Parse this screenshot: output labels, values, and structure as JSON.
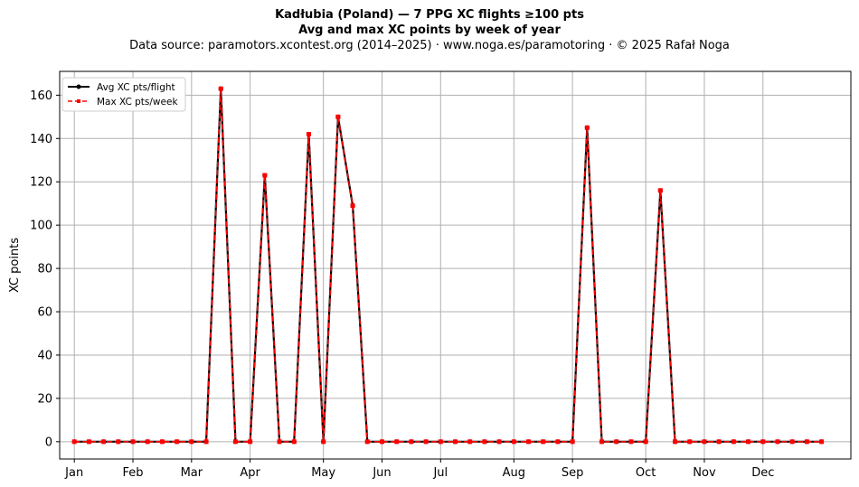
{
  "chart_data": {
    "type": "line",
    "title": "Kadłubia (Poland)  —  7 PPG XC flights ≥100 pts",
    "subtitle": "Avg and max XC points by week of year",
    "source_note": "Data source: paramotors.xcontest.org (2014–2025)  ·  www.noga.es/paramotoring  ·  © 2025 Rafał Noga",
    "ylabel": "XC points",
    "xlabel": "",
    "xlim": [
      0,
      54
    ],
    "ylim": [
      -8,
      171
    ],
    "x_ticks": [
      {
        "label": "Jan",
        "x": 1
      },
      {
        "label": "Feb",
        "x": 5
      },
      {
        "label": "Mar",
        "x": 9
      },
      {
        "label": "Apr",
        "x": 13
      },
      {
        "label": "May",
        "x": 18
      },
      {
        "label": "Jun",
        "x": 22
      },
      {
        "label": "Jul",
        "x": 26
      },
      {
        "label": "Aug",
        "x": 31
      },
      {
        "label": "Sep",
        "x": 35
      },
      {
        "label": "Oct",
        "x": 40
      },
      {
        "label": "Nov",
        "x": 44
      },
      {
        "label": "Dec",
        "x": 48
      }
    ],
    "y_ticks": [
      0,
      20,
      40,
      60,
      80,
      100,
      120,
      140,
      160
    ],
    "grid": true,
    "legend_position": "top-left",
    "x": [
      1,
      2,
      3,
      4,
      5,
      6,
      7,
      8,
      9,
      10,
      11,
      12,
      13,
      14,
      15,
      16,
      17,
      18,
      19,
      20,
      21,
      22,
      23,
      24,
      25,
      26,
      27,
      28,
      29,
      30,
      31,
      32,
      33,
      34,
      35,
      36,
      37,
      38,
      39,
      40,
      41,
      42,
      43,
      44,
      45,
      46,
      47,
      48,
      49,
      50,
      51,
      52
    ],
    "series": [
      {
        "name": "Avg XC pts/flight",
        "color": "#000000",
        "style": "solid-dot",
        "values": [
          0,
          0,
          0,
          0,
          0,
          0,
          0,
          0,
          0,
          0,
          163,
          0,
          0,
          123,
          0,
          0,
          142,
          0,
          150,
          109,
          0,
          0,
          0,
          0,
          0,
          0,
          0,
          0,
          0,
          0,
          0,
          0,
          0,
          0,
          0,
          145,
          0,
          0,
          0,
          0,
          116,
          0,
          0,
          0,
          0,
          0,
          0,
          0,
          0,
          0,
          0,
          0
        ]
      },
      {
        "name": "Max XC pts/week",
        "color": "#ff0000",
        "style": "dashed-square",
        "values": [
          0,
          0,
          0,
          0,
          0,
          0,
          0,
          0,
          0,
          0,
          163,
          0,
          0,
          123,
          0,
          0,
          142,
          0,
          150,
          109,
          0,
          0,
          0,
          0,
          0,
          0,
          0,
          0,
          0,
          0,
          0,
          0,
          0,
          0,
          0,
          145,
          0,
          0,
          0,
          0,
          116,
          0,
          0,
          0,
          0,
          0,
          0,
          0,
          0,
          0,
          0,
          0
        ]
      }
    ]
  }
}
